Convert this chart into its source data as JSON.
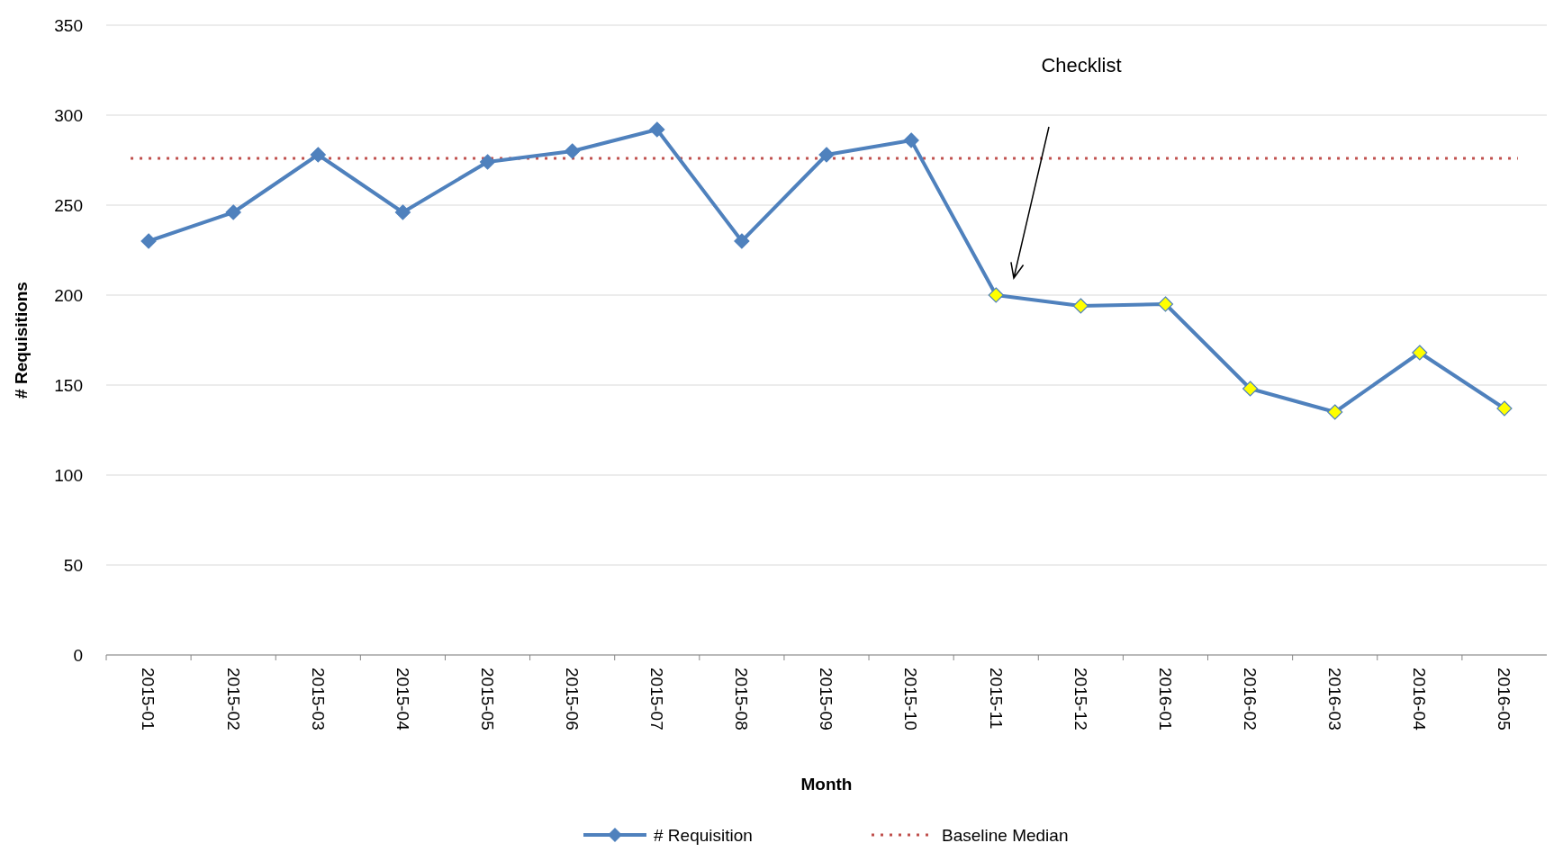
{
  "chart_data": {
    "type": "line",
    "xlabel": "Month",
    "ylabel": "# Requisitions",
    "categories": [
      "2015-01",
      "2015-02",
      "2015-03",
      "2015-04",
      "2015-05",
      "2015-06",
      "2015-07",
      "2015-08",
      "2015-09",
      "2015-10",
      "2015-11",
      "2015-12",
      "2016-01",
      "2016-02",
      "2016-03",
      "2016-04",
      "2016-05"
    ],
    "series": [
      {
        "name": "# Requisition",
        "color": "#4f81bd",
        "values": [
          230,
          246,
          278,
          246,
          274,
          280,
          292,
          230,
          278,
          286,
          200,
          194,
          195,
          148,
          135,
          168,
          137
        ],
        "colors": [
          "#4f81bd",
          "#4f81bd",
          "#4f81bd",
          "#4f81bd",
          "#4f81bd",
          "#4f81bd",
          "#4f81bd",
          "#4f81bd",
          "#4f81bd",
          "#4f81bd",
          "#ffff00",
          "#ffff00",
          "#ffff00",
          "#ffff00",
          "#ffff00",
          "#ffff00",
          "#ffff00"
        ]
      }
    ],
    "ref_lines": [
      {
        "axis": "y",
        "value": 276,
        "label": "Baseline Median",
        "color": "#c0504d",
        "line_style": "dotted"
      }
    ],
    "annotations": [
      "Checklist"
    ],
    "ylim": [
      0,
      350
    ],
    "yticks": [
      0,
      50,
      100,
      150,
      200,
      250,
      300,
      350
    ],
    "grid": "y",
    "legend": "bottom",
    "marker": "diamond",
    "line_style": "solid"
  }
}
